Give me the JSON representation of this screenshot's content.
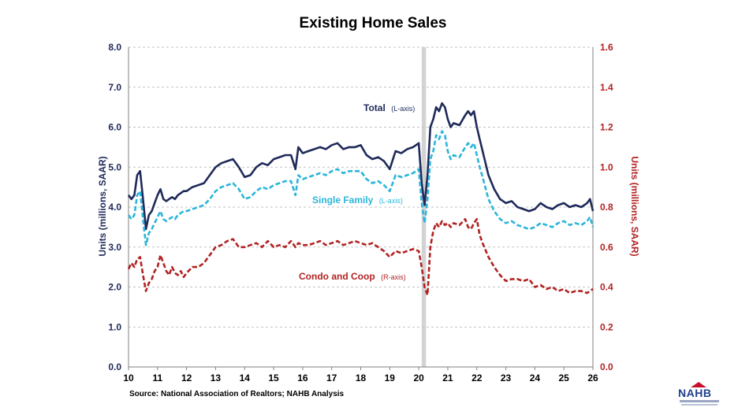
{
  "chart_data": {
    "type": "line",
    "title": "Existing Home Sales",
    "ylabel": "Units (millions, SAAR)",
    "ylabel_right": "Units (millions, SAAR)",
    "ylim": [
      0,
      8
    ],
    "ylim_right": [
      0,
      1.6
    ],
    "xlim": [
      10,
      26
    ],
    "yticks": [
      "0.0",
      "1.0",
      "2.0",
      "3.0",
      "4.0",
      "5.0",
      "6.0",
      "7.0",
      "8.0"
    ],
    "yticks_right": [
      "0.0",
      "0.2",
      "0.4",
      "0.6",
      "0.8",
      "1.0",
      "1.2",
      "1.4",
      "1.6"
    ],
    "xticks": [
      "10",
      "11",
      "12",
      "13",
      "14",
      "15",
      "16",
      "17",
      "18",
      "19",
      "20",
      "21",
      "22",
      "23",
      "24",
      "25",
      "26"
    ],
    "grid": true,
    "recession_band": [
      20.1,
      20.25
    ],
    "source": "Source: National Association of Realtors; NAHB Analysis",
    "series": [
      {
        "name": "Total",
        "axis_note": "(L-axis)",
        "axis": "left",
        "color": "#1f2a5a",
        "dash": "solid",
        "x": [
          10.0,
          10.1,
          10.2,
          10.3,
          10.4,
          10.5,
          10.6,
          10.7,
          10.8,
          10.9,
          11.0,
          11.1,
          11.2,
          11.3,
          11.4,
          11.5,
          11.6,
          11.7,
          11.8,
          11.9,
          12.0,
          12.2,
          12.4,
          12.6,
          12.8,
          13.0,
          13.2,
          13.4,
          13.6,
          13.8,
          14.0,
          14.2,
          14.4,
          14.6,
          14.8,
          15.0,
          15.2,
          15.4,
          15.6,
          15.75,
          15.85,
          16.0,
          16.2,
          16.4,
          16.6,
          16.8,
          17.0,
          17.2,
          17.4,
          17.6,
          17.8,
          18.0,
          18.2,
          18.4,
          18.6,
          18.8,
          19.0,
          19.2,
          19.4,
          19.6,
          19.8,
          20.0,
          20.1,
          20.2,
          20.3,
          20.4,
          20.5,
          20.6,
          20.7,
          20.8,
          20.9,
          21.0,
          21.1,
          21.2,
          21.4,
          21.6,
          21.7,
          21.8,
          21.9,
          22.0,
          22.1,
          22.2,
          22.4,
          22.6,
          22.8,
          23.0,
          23.2,
          23.4,
          23.6,
          23.8,
          24.0,
          24.2,
          24.4,
          24.6,
          24.8,
          25.0,
          25.2,
          25.4,
          25.6,
          25.8,
          25.9,
          26.0
        ],
        "values": [
          4.3,
          4.2,
          4.3,
          4.8,
          4.9,
          4.2,
          3.45,
          3.8,
          3.9,
          4.1,
          4.3,
          4.45,
          4.2,
          4.15,
          4.2,
          4.25,
          4.2,
          4.3,
          4.35,
          4.4,
          4.4,
          4.5,
          4.55,
          4.6,
          4.8,
          5.0,
          5.1,
          5.15,
          5.2,
          5.0,
          4.75,
          4.8,
          5.0,
          5.1,
          5.05,
          5.2,
          5.25,
          5.3,
          5.3,
          4.95,
          5.5,
          5.35,
          5.4,
          5.45,
          5.5,
          5.45,
          5.55,
          5.6,
          5.45,
          5.5,
          5.5,
          5.55,
          5.3,
          5.2,
          5.25,
          5.15,
          4.95,
          5.4,
          5.35,
          5.45,
          5.5,
          5.6,
          4.6,
          4.05,
          4.8,
          6.0,
          6.2,
          6.5,
          6.4,
          6.6,
          6.5,
          6.2,
          6.0,
          6.1,
          6.05,
          6.3,
          6.4,
          6.3,
          6.4,
          6.0,
          5.7,
          5.4,
          4.8,
          4.45,
          4.2,
          4.1,
          4.15,
          4.0,
          3.95,
          3.9,
          3.95,
          4.1,
          4.0,
          3.95,
          4.05,
          4.1,
          4.0,
          4.05,
          4.0,
          4.1,
          4.2,
          3.9
        ]
      },
      {
        "name": "Single Family",
        "axis_note": "(L-axis)",
        "axis": "left",
        "color": "#2bb5d9",
        "dash": "dashed",
        "x": [
          10.0,
          10.1,
          10.2,
          10.3,
          10.4,
          10.5,
          10.6,
          10.7,
          10.8,
          10.9,
          11.0,
          11.1,
          11.2,
          11.3,
          11.4,
          11.5,
          11.6,
          11.7,
          11.8,
          11.9,
          12.0,
          12.2,
          12.4,
          12.6,
          12.8,
          13.0,
          13.2,
          13.4,
          13.6,
          13.8,
          14.0,
          14.2,
          14.4,
          14.6,
          14.8,
          15.0,
          15.2,
          15.4,
          15.6,
          15.75,
          15.85,
          16.0,
          16.2,
          16.4,
          16.6,
          16.8,
          17.0,
          17.2,
          17.4,
          17.6,
          17.8,
          18.0,
          18.2,
          18.4,
          18.6,
          18.8,
          19.0,
          19.2,
          19.4,
          19.6,
          19.8,
          20.0,
          20.1,
          20.2,
          20.3,
          20.4,
          20.5,
          20.6,
          20.7,
          20.8,
          20.9,
          21.0,
          21.1,
          21.2,
          21.4,
          21.6,
          21.7,
          21.8,
          21.9,
          22.0,
          22.1,
          22.2,
          22.4,
          22.6,
          22.8,
          23.0,
          23.2,
          23.4,
          23.6,
          23.8,
          24.0,
          24.2,
          24.4,
          24.6,
          24.8,
          25.0,
          25.2,
          25.4,
          25.6,
          25.8,
          25.9,
          26.0
        ],
        "values": [
          3.8,
          3.7,
          3.8,
          4.3,
          4.4,
          3.7,
          3.05,
          3.35,
          3.45,
          3.6,
          3.75,
          3.9,
          3.7,
          3.65,
          3.7,
          3.75,
          3.7,
          3.8,
          3.85,
          3.9,
          3.9,
          3.95,
          4.0,
          4.05,
          4.2,
          4.4,
          4.5,
          4.55,
          4.6,
          4.45,
          4.2,
          4.25,
          4.4,
          4.5,
          4.45,
          4.55,
          4.6,
          4.65,
          4.65,
          4.3,
          4.8,
          4.7,
          4.75,
          4.8,
          4.85,
          4.8,
          4.9,
          4.95,
          4.85,
          4.9,
          4.9,
          4.9,
          4.7,
          4.6,
          4.65,
          4.55,
          4.4,
          4.8,
          4.75,
          4.8,
          4.85,
          4.95,
          4.1,
          3.6,
          4.2,
          5.2,
          5.4,
          5.8,
          5.7,
          5.9,
          5.8,
          5.4,
          5.2,
          5.3,
          5.25,
          5.5,
          5.6,
          5.5,
          5.6,
          5.3,
          5.0,
          4.75,
          4.2,
          3.9,
          3.7,
          3.6,
          3.65,
          3.55,
          3.5,
          3.45,
          3.5,
          3.6,
          3.55,
          3.5,
          3.6,
          3.65,
          3.55,
          3.6,
          3.55,
          3.65,
          3.75,
          3.5
        ]
      },
      {
        "name": "Condo and Coop",
        "axis_note": "(R-axis)",
        "axis": "right",
        "color": "#b22222",
        "dash": "dashed",
        "x": [
          10.0,
          10.1,
          10.2,
          10.3,
          10.4,
          10.5,
          10.6,
          10.7,
          10.8,
          10.9,
          11.0,
          11.1,
          11.2,
          11.3,
          11.4,
          11.5,
          11.6,
          11.7,
          11.8,
          11.9,
          12.0,
          12.2,
          12.4,
          12.6,
          12.8,
          13.0,
          13.2,
          13.4,
          13.6,
          13.8,
          14.0,
          14.2,
          14.4,
          14.6,
          14.8,
          15.0,
          15.2,
          15.4,
          15.6,
          15.75,
          15.85,
          16.0,
          16.2,
          16.4,
          16.6,
          16.8,
          17.0,
          17.2,
          17.4,
          17.6,
          17.8,
          18.0,
          18.2,
          18.4,
          18.6,
          18.8,
          19.0,
          19.2,
          19.4,
          19.6,
          19.8,
          20.0,
          20.1,
          20.2,
          20.3,
          20.4,
          20.5,
          20.6,
          20.7,
          20.8,
          20.9,
          21.0,
          21.1,
          21.2,
          21.4,
          21.6,
          21.7,
          21.8,
          21.9,
          22.0,
          22.1,
          22.2,
          22.4,
          22.6,
          22.8,
          23.0,
          23.2,
          23.4,
          23.6,
          23.8,
          24.0,
          24.2,
          24.4,
          24.6,
          24.8,
          25.0,
          25.2,
          25.4,
          25.6,
          25.8,
          25.9,
          26.0
        ],
        "values": [
          0.49,
          0.52,
          0.5,
          0.54,
          0.55,
          0.46,
          0.38,
          0.42,
          0.44,
          0.48,
          0.5,
          0.56,
          0.52,
          0.48,
          0.46,
          0.5,
          0.47,
          0.46,
          0.48,
          0.45,
          0.47,
          0.5,
          0.5,
          0.52,
          0.56,
          0.6,
          0.61,
          0.63,
          0.64,
          0.6,
          0.6,
          0.61,
          0.62,
          0.6,
          0.63,
          0.6,
          0.61,
          0.6,
          0.63,
          0.6,
          0.62,
          0.61,
          0.61,
          0.62,
          0.63,
          0.61,
          0.62,
          0.63,
          0.61,
          0.62,
          0.63,
          0.62,
          0.61,
          0.62,
          0.6,
          0.58,
          0.55,
          0.58,
          0.57,
          0.58,
          0.59,
          0.58,
          0.5,
          0.4,
          0.36,
          0.6,
          0.68,
          0.72,
          0.7,
          0.73,
          0.71,
          0.72,
          0.7,
          0.72,
          0.71,
          0.74,
          0.7,
          0.69,
          0.72,
          0.74,
          0.66,
          0.62,
          0.55,
          0.5,
          0.46,
          0.43,
          0.44,
          0.44,
          0.43,
          0.44,
          0.4,
          0.41,
          0.39,
          0.4,
          0.38,
          0.39,
          0.37,
          0.38,
          0.38,
          0.37,
          0.38,
          0.39
        ]
      }
    ]
  },
  "logo": {
    "text": "NAHB"
  }
}
